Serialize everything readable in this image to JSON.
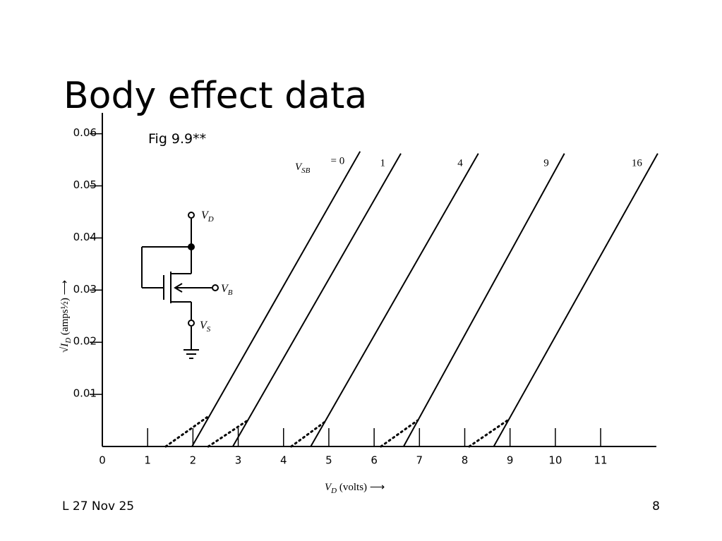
{
  "title": "Body effect data",
  "figure_label": "Fig 9.9**",
  "footer": {
    "left": "L 27 Nov 25",
    "page": "8"
  },
  "circuit": {
    "drain": {
      "base": "V",
      "sub": "D"
    },
    "body": {
      "base": "V",
      "sub": "B"
    },
    "source": {
      "base": "V",
      "sub": "S"
    }
  },
  "chart_data": {
    "type": "line",
    "x_label": {
      "base": "V",
      "sub": "D",
      "rest": " (volts) ⟶"
    },
    "y_label": {
      "base": "√I",
      "sub": "D",
      "rest": " (amps½) ⟶"
    },
    "series_symbol": {
      "base": "V",
      "sub": "SB"
    },
    "xlim": [
      0,
      12.23
    ],
    "ylim": [
      0,
      0.064
    ],
    "xticks": [
      0,
      1,
      2,
      3,
      4,
      5,
      6,
      7,
      8,
      9,
      10,
      11
    ],
    "yticks": [
      0.01,
      0.02,
      0.03,
      0.04,
      0.05,
      0.06
    ],
    "color": "#000000",
    "series": [
      {
        "name": "= 0",
        "x": [
          1.98,
          5.69
        ],
        "values": [
          0,
          0.0566
        ],
        "tail_x": [
          1.4,
          2.31
        ],
        "tail_values": [
          0,
          0.0056
        ]
      },
      {
        "name": "1",
        "x": [
          2.88,
          6.59
        ],
        "values": [
          0,
          0.0562
        ],
        "tail_x": [
          2.34,
          3.19
        ],
        "tail_values": [
          0,
          0.0049
        ]
      },
      {
        "name": "4",
        "x": [
          4.6,
          8.3
        ],
        "values": [
          0,
          0.0562
        ],
        "tail_x": [
          4.17,
          4.91
        ],
        "tail_values": [
          0,
          0.0047
        ]
      },
      {
        "name": "9",
        "x": [
          6.65,
          10.2
        ],
        "values": [
          0,
          0.0562
        ],
        "tail_x": [
          6.15,
          6.96
        ],
        "tail_values": [
          0,
          0.005
        ]
      },
      {
        "name": "16",
        "x": [
          8.64,
          12.26
        ],
        "values": [
          0,
          0.0562
        ],
        "tail_x": [
          8.1,
          8.96
        ],
        "tail_values": [
          0,
          0.0051
        ]
      }
    ]
  }
}
